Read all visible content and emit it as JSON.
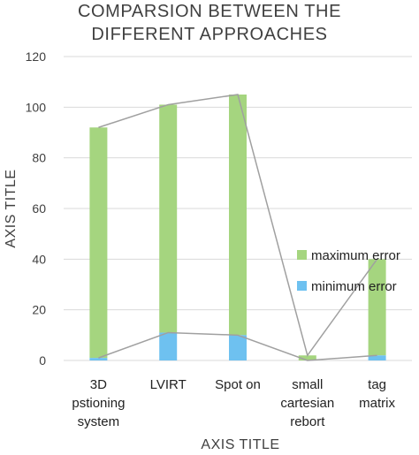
{
  "chart_data": {
    "type": "bar",
    "stacked": true,
    "title_lines": [
      "COMPARSION BETWEEN THE",
      "DIFFERENT APPROACHES"
    ],
    "xlabel": "AXIS TITLE",
    "ylabel": "AXIS TITLE",
    "ylim": [
      0,
      120
    ],
    "yticks": [
      0,
      20,
      40,
      60,
      80,
      100,
      120
    ],
    "grid": "horizontal",
    "legend_position": "right",
    "categories": [
      [
        "3D",
        "pstioning",
        "system"
      ],
      [
        "LVIRT"
      ],
      [
        "Spot on"
      ],
      [
        "small",
        "cartesian",
        "rebort"
      ],
      [
        "tag",
        "matrix"
      ]
    ],
    "series": [
      {
        "name": "minimum error",
        "color": "#6ec1f0",
        "values": [
          1,
          11,
          10,
          0,
          2
        ]
      },
      {
        "name": "maximum error",
        "color": "#a5d57f",
        "values": [
          91,
          90,
          95,
          2,
          38
        ]
      }
    ],
    "line_color": "#a0a0a0"
  }
}
